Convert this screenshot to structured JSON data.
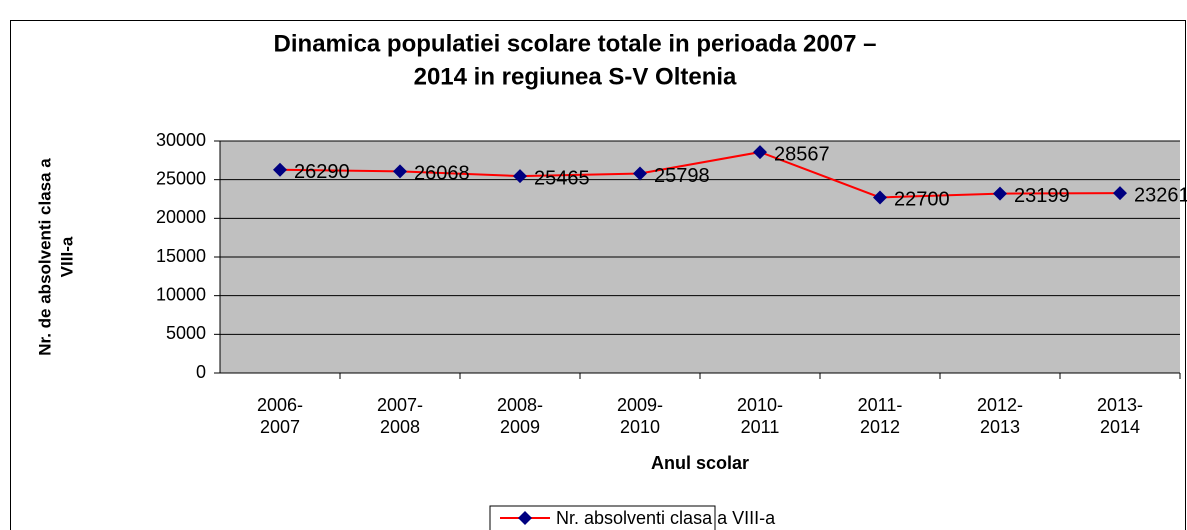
{
  "chart_data": {
    "type": "line",
    "title": [
      "Dinamica populatiei scolare totale in perioada 2007 –",
      "2014 in regiunea S-V Oltenia"
    ],
    "y_label": [
      "Nr. de absolventi clasa a",
      "VIII-a"
    ],
    "x_label": "Anul scolar",
    "categories": [
      "2006-2007",
      "2007-2008",
      "2008-2009",
      "2009-2010",
      "2010-2011",
      "2011-2012",
      "2012-2013",
      "2013-2014"
    ],
    "series": [
      {
        "name": "Nr. absolventi clasa a VIII-a",
        "color": "#ff0000",
        "marker_color": "#000080",
        "values": [
          26290,
          26068,
          25465,
          25798,
          28567,
          22700,
          23199,
          23261
        ]
      }
    ],
    "ylim": [
      0,
      30000
    ],
    "yticks": [
      0,
      5000,
      10000,
      15000,
      20000,
      25000,
      30000
    ],
    "grid": true,
    "legend": "bottom"
  }
}
